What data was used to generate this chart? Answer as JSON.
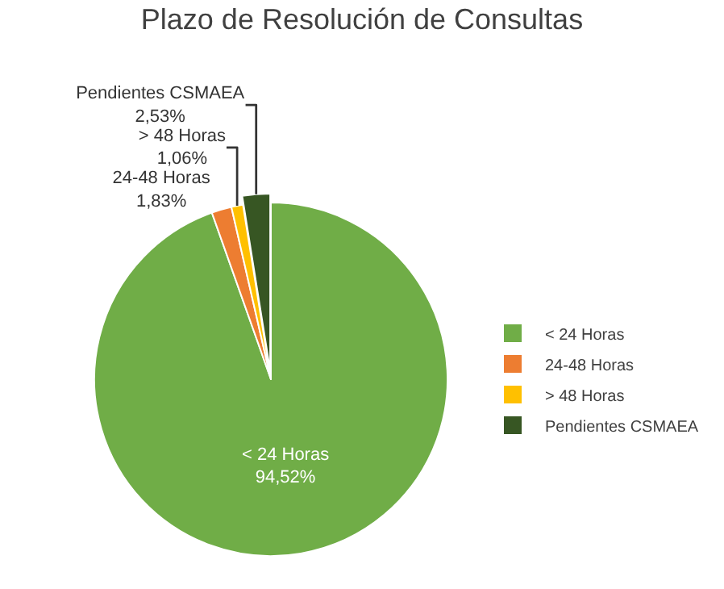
{
  "chart_data": {
    "type": "pie",
    "title": "Plazo de Resolución de Consultas",
    "categories": [
      "< 24 Horas",
      "24-48 Horas",
      "> 48 Horas",
      "Pendientes CSMAEA"
    ],
    "values": [
      94.52,
      1.83,
      1.06,
      2.53
    ],
    "value_labels": [
      "94,52%",
      "1,83%",
      "1,06%",
      "2,53%"
    ],
    "colors": [
      "#70ad47",
      "#ed7d31",
      "#ffc000",
      "#375623"
    ],
    "legend": "right"
  }
}
